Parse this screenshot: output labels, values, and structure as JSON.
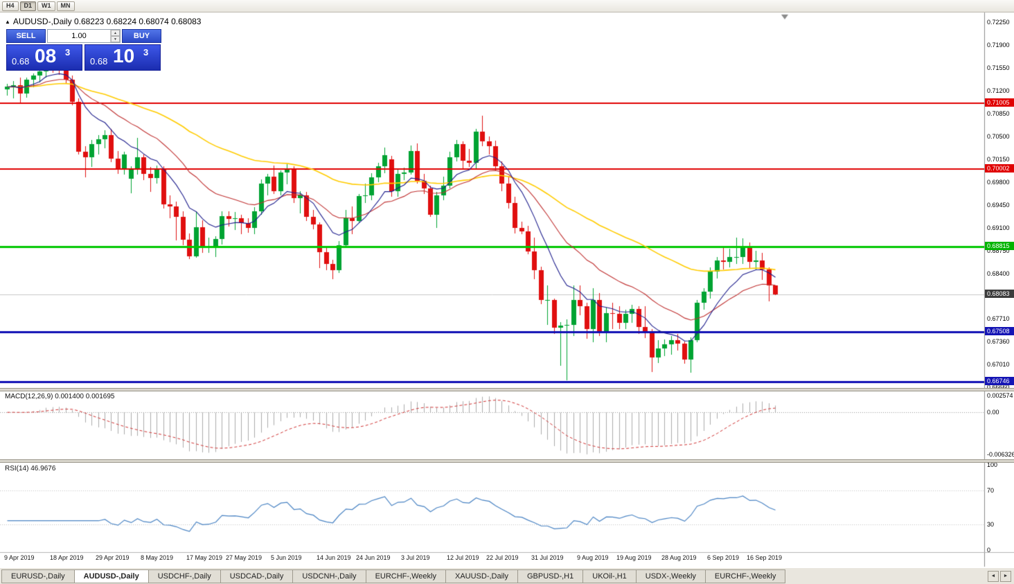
{
  "toolbar": {
    "timeframes": [
      {
        "label": "H4",
        "active": false
      },
      {
        "label": "D1",
        "active": true
      },
      {
        "label": "W1",
        "active": false
      },
      {
        "label": "MN",
        "active": false
      }
    ]
  },
  "icons": {
    "collapse": "▲",
    "spin_up": "▲",
    "spin_down": "▼",
    "left": "◄",
    "right": "►"
  },
  "chart": {
    "title": "AUDUSD-,Daily",
    "ohlc_text": "0.68223 0.68224 0.68074 0.68083"
  },
  "trade_panel": {
    "sell_label": "SELL",
    "buy_label": "BUY",
    "volume": "1.00",
    "bid": {
      "small": "0.68",
      "big": "08",
      "sup": "3"
    },
    "ask": {
      "small": "0.68",
      "big": "10",
      "sup": "3"
    }
  },
  "tabs": [
    {
      "label": "EURUSD-,Daily",
      "active": false
    },
    {
      "label": "AUDUSD-,Daily",
      "active": true
    },
    {
      "label": "USDCHF-,Daily",
      "active": false
    },
    {
      "label": "USDCAD-,Daily",
      "active": false
    },
    {
      "label": "USDCNH-,Daily",
      "active": false
    },
    {
      "label": "EURCHF-,Weekly",
      "active": false
    },
    {
      "label": "XAUUSD-,Daily",
      "active": false
    },
    {
      "label": "GBPUSD-,H1",
      "active": false
    },
    {
      "label": "UKOil-,H1",
      "active": false
    },
    {
      "label": "USDX-,Weekly",
      "active": false
    },
    {
      "label": "EURCHF-,Weekly",
      "active": false
    }
  ],
  "chart_data": {
    "type": "candlestick",
    "symbol": "AUDUSD-,Daily",
    "current_price": 0.68083,
    "colors": {
      "up": "#00A332",
      "down": "#E00F0F",
      "bid_line": "#C9C9C9"
    },
    "price_axis": {
      "max": 0.724,
      "min": 0.6665,
      "labels": [
        "0.72250",
        "0.71900",
        "0.71550",
        "0.71200",
        "0.70850",
        "0.70500",
        "0.70150",
        "0.69800",
        "0.69450",
        "0.69100",
        "0.68750",
        "0.68400",
        "0.67710",
        "0.67360",
        "0.67010",
        "0.66660"
      ],
      "badges": [
        {
          "value": 0.71005,
          "text": "0.71005",
          "color": "#E00000"
        },
        {
          "value": 0.70002,
          "text": "0.70002",
          "color": "#E00000"
        },
        {
          "value": 0.68815,
          "text": "0.68815",
          "color": "#00B400"
        },
        {
          "value": 0.68083,
          "text": "0.68083",
          "color": "#3C3C3C"
        },
        {
          "value": 0.67508,
          "text": "0.67508",
          "color": "#1414B4"
        },
        {
          "value": 0.66746,
          "text": "0.66746",
          "color": "#1414B4"
        }
      ]
    },
    "hlines": [
      {
        "value": 0.71005,
        "color": "#E00000",
        "width": 2
      },
      {
        "value": 0.70002,
        "color": "#E00000",
        "width": 2
      },
      {
        "value": 0.68815,
        "color": "#00C800",
        "width": 3
      },
      {
        "value": 0.67508,
        "color": "#0F0FB4",
        "width": 3
      },
      {
        "value": 0.66746,
        "color": "#0F0FB4",
        "width": 3
      }
    ],
    "ma": [
      {
        "period": 55,
        "color": "#FFCC00",
        "width": 1.6
      },
      {
        "period": 21,
        "color": "#C03030",
        "width": 1.1
      },
      {
        "period": 9,
        "color": "#1C1C8C",
        "width": 1.1
      }
    ],
    "macd": {
      "label": "MACD(12,26,9)",
      "values_text": "0.001400 0.001695",
      "fast": 12,
      "slow": 26,
      "signal": 9,
      "axis": {
        "max": "0.002574",
        "zero": "0.00",
        "min": "-0.006326"
      }
    },
    "rsi": {
      "label": "RSI(14)",
      "value_text": "46.9676",
      "period": 14,
      "axis": [
        100,
        70,
        30,
        0
      ],
      "levels": [
        70,
        30
      ]
    },
    "x_labels": [
      {
        "i": 0,
        "t": "9 Apr 2019"
      },
      {
        "i": 7,
        "t": "18 Apr 2019"
      },
      {
        "i": 14,
        "t": "29 Apr 2019"
      },
      {
        "i": 21,
        "t": "8 May 2019"
      },
      {
        "i": 28,
        "t": "17 May 2019"
      },
      {
        "i": 34,
        "t": "27 May 2019"
      },
      {
        "i": 41,
        "t": "5 Jun 2019"
      },
      {
        "i": 48,
        "t": "14 Jun 2019"
      },
      {
        "i": 54,
        "t": "24 Jun 2019"
      },
      {
        "i": 61,
        "t": "3 Jul 2019"
      },
      {
        "i": 68,
        "t": "12 Jul 2019"
      },
      {
        "i": 74,
        "t": "22 Jul 2019"
      },
      {
        "i": 81,
        "t": "31 Jul 2019"
      },
      {
        "i": 88,
        "t": "9 Aug 2019"
      },
      {
        "i": 94,
        "t": "19 Aug 2019"
      },
      {
        "i": 101,
        "t": "28 Aug 2019"
      },
      {
        "i": 108,
        "t": "6 Sep 2019"
      },
      {
        "i": 114,
        "t": "16 Sep 2019"
      }
    ],
    "ohlc": [
      [
        0.7122,
        0.7131,
        0.7113,
        0.7126
      ],
      [
        0.7126,
        0.7135,
        0.7108,
        0.7129
      ],
      [
        0.7129,
        0.714,
        0.7102,
        0.7116
      ],
      [
        0.7116,
        0.714,
        0.711,
        0.7137
      ],
      [
        0.7137,
        0.7147,
        0.7125,
        0.7143
      ],
      [
        0.7143,
        0.7155,
        0.7133,
        0.715
      ],
      [
        0.715,
        0.7176,
        0.714,
        0.7173
      ],
      [
        0.7173,
        0.7178,
        0.7148,
        0.7155
      ],
      [
        0.7155,
        0.7162,
        0.7145,
        0.7153
      ],
      [
        0.7153,
        0.7158,
        0.7132,
        0.7137
      ],
      [
        0.7137,
        0.7143,
        0.7098,
        0.7103
      ],
      [
        0.7103,
        0.7108,
        0.7022,
        0.7027
      ],
      [
        0.7027,
        0.7035,
        0.6988,
        0.7018
      ],
      [
        0.7018,
        0.7045,
        0.7003,
        0.7038
      ],
      [
        0.7038,
        0.7052,
        0.7023,
        0.7046
      ],
      [
        0.7046,
        0.706,
        0.7032,
        0.7052
      ],
      [
        0.7052,
        0.7062,
        0.7011,
        0.7016
      ],
      [
        0.7016,
        0.7028,
        0.6993,
        0.7
      ],
      [
        0.7,
        0.7027,
        0.6992,
        0.7022
      ],
      [
        0.6985,
        0.7005,
        0.6963,
        0.7
      ],
      [
        0.7,
        0.7048,
        0.6992,
        0.7018
      ],
      [
        0.7018,
        0.7023,
        0.6983,
        0.6993
      ],
      [
        0.6993,
        0.7003,
        0.6965,
        0.6986
      ],
      [
        0.6986,
        0.7006,
        0.6978,
        0.7
      ],
      [
        0.7,
        0.7005,
        0.694,
        0.6946
      ],
      [
        0.6946,
        0.696,
        0.6925,
        0.6943
      ],
      [
        0.6943,
        0.695,
        0.6891,
        0.6927
      ],
      [
        0.6927,
        0.6935,
        0.6884,
        0.6892
      ],
      [
        0.6892,
        0.6902,
        0.6862,
        0.6867
      ],
      [
        0.6867,
        0.6935,
        0.6864,
        0.6911
      ],
      [
        0.6911,
        0.6922,
        0.6872,
        0.6881
      ],
      [
        0.6881,
        0.6895,
        0.6872,
        0.6883
      ],
      [
        0.6883,
        0.6897,
        0.6865,
        0.6893
      ],
      [
        0.6893,
        0.6936,
        0.6885,
        0.6928
      ],
      [
        0.6928,
        0.6935,
        0.6912,
        0.6924
      ],
      [
        0.6924,
        0.6934,
        0.6907,
        0.6925
      ],
      [
        0.6925,
        0.693,
        0.6901,
        0.6918
      ],
      [
        0.6918,
        0.6925,
        0.6903,
        0.691
      ],
      [
        0.691,
        0.6942,
        0.6901,
        0.6936
      ],
      [
        0.6936,
        0.6984,
        0.693,
        0.6978
      ],
      [
        0.6978,
        0.6993,
        0.696,
        0.6989
      ],
      [
        0.6989,
        0.7006,
        0.6962,
        0.6966
      ],
      [
        0.6966,
        0.6998,
        0.696,
        0.6995
      ],
      [
        0.6995,
        0.7008,
        0.6977,
        0.7
      ],
      [
        0.7,
        0.7004,
        0.6948,
        0.6956
      ],
      [
        0.6956,
        0.6966,
        0.6932,
        0.696
      ],
      [
        0.696,
        0.6965,
        0.6921,
        0.6927
      ],
      [
        0.6927,
        0.6938,
        0.6908,
        0.6915
      ],
      [
        0.6915,
        0.6919,
        0.6849,
        0.6873
      ],
      [
        0.6873,
        0.688,
        0.6845,
        0.6855
      ],
      [
        0.6855,
        0.6861,
        0.6832,
        0.6845
      ],
      [
        0.6845,
        0.689,
        0.6841,
        0.6884
      ],
      [
        0.6884,
        0.6938,
        0.6879,
        0.6925
      ],
      [
        0.6925,
        0.6943,
        0.6901,
        0.6921
      ],
      [
        0.6921,
        0.6962,
        0.6917,
        0.6959
      ],
      [
        0.6959,
        0.6978,
        0.6948,
        0.696
      ],
      [
        0.696,
        0.6994,
        0.6953,
        0.6987
      ],
      [
        0.6987,
        0.701,
        0.698,
        0.7005
      ],
      [
        0.7005,
        0.7033,
        0.6994,
        0.7021
      ],
      [
        0.7015,
        0.702,
        0.6958,
        0.6966
      ],
      [
        0.6966,
        0.7,
        0.6958,
        0.6993
      ],
      [
        0.6993,
        0.7002,
        0.6983,
        0.6995
      ],
      [
        0.6995,
        0.7036,
        0.6992,
        0.7028
      ],
      [
        0.7028,
        0.704,
        0.6978,
        0.6982
      ],
      [
        0.6982,
        0.6993,
        0.6962,
        0.6971
      ],
      [
        0.6971,
        0.6975,
        0.6927,
        0.693
      ],
      [
        0.693,
        0.6965,
        0.691,
        0.696
      ],
      [
        0.696,
        0.6989,
        0.6952,
        0.6975
      ],
      [
        0.6975,
        0.7027,
        0.6971,
        0.7018
      ],
      [
        0.7018,
        0.7045,
        0.7012,
        0.7038
      ],
      [
        0.7038,
        0.7043,
        0.7,
        0.7013
      ],
      [
        0.7013,
        0.7031,
        0.7003,
        0.701
      ],
      [
        0.701,
        0.7062,
        0.7,
        0.7058
      ],
      [
        0.7058,
        0.7082,
        0.7035,
        0.7043
      ],
      [
        0.7043,
        0.705,
        0.7022,
        0.7035
      ],
      [
        0.7035,
        0.7044,
        0.6998,
        0.7005
      ],
      [
        0.7005,
        0.7012,
        0.6966,
        0.6978
      ],
      [
        0.6978,
        0.699,
        0.694,
        0.6948
      ],
      [
        0.6948,
        0.6958,
        0.6902,
        0.691
      ],
      [
        0.691,
        0.692,
        0.69,
        0.6905
      ],
      [
        0.6905,
        0.6913,
        0.687,
        0.6874
      ],
      [
        0.6874,
        0.6895,
        0.6832,
        0.6845
      ],
      [
        0.6845,
        0.6851,
        0.6793,
        0.68
      ],
      [
        0.68,
        0.6822,
        0.6762,
        0.68
      ],
      [
        0.68,
        0.6802,
        0.6748,
        0.6757
      ],
      [
        0.6757,
        0.6766,
        0.6699,
        0.676
      ],
      [
        0.676,
        0.677,
        0.6677,
        0.6762
      ],
      [
        0.6762,
        0.6822,
        0.6745,
        0.68
      ],
      [
        0.68,
        0.6822,
        0.6776,
        0.679
      ],
      [
        0.679,
        0.6796,
        0.674,
        0.6755
      ],
      [
        0.6755,
        0.6818,
        0.6735,
        0.68
      ],
      [
        0.68,
        0.681,
        0.6745,
        0.675
      ],
      [
        0.675,
        0.6788,
        0.6735,
        0.678
      ],
      [
        0.678,
        0.6795,
        0.6755,
        0.6778
      ],
      [
        0.6778,
        0.679,
        0.6755,
        0.6765
      ],
      [
        0.6765,
        0.6785,
        0.6755,
        0.6778
      ],
      [
        0.6778,
        0.6792,
        0.6765,
        0.6786
      ],
      [
        0.6786,
        0.679,
        0.6748,
        0.6758
      ],
      [
        0.6758,
        0.679,
        0.6741,
        0.6751
      ],
      [
        0.6751,
        0.6755,
        0.6689,
        0.6712
      ],
      [
        0.6712,
        0.6738,
        0.6703,
        0.6726
      ],
      [
        0.6726,
        0.6739,
        0.6714,
        0.6732
      ],
      [
        0.6732,
        0.6745,
        0.6716,
        0.6738
      ],
      [
        0.6738,
        0.6748,
        0.6722,
        0.6733
      ],
      [
        0.6733,
        0.6736,
        0.6702,
        0.6708
      ],
      [
        0.6708,
        0.6742,
        0.6688,
        0.6738
      ],
      [
        0.6738,
        0.68,
        0.6735,
        0.6795
      ],
      [
        0.6795,
        0.6818,
        0.6785,
        0.6812
      ],
      [
        0.6812,
        0.685,
        0.6802,
        0.6843
      ],
      [
        0.6843,
        0.6866,
        0.6833,
        0.686
      ],
      [
        0.686,
        0.688,
        0.6846,
        0.6858
      ],
      [
        0.6858,
        0.6878,
        0.685,
        0.6866
      ],
      [
        0.6866,
        0.6895,
        0.6855,
        0.6866
      ],
      [
        0.6866,
        0.6894,
        0.6855,
        0.688
      ],
      [
        0.688,
        0.6888,
        0.6849,
        0.6858
      ],
      [
        0.6858,
        0.6875,
        0.6845,
        0.686
      ],
      [
        0.686,
        0.6872,
        0.683,
        0.6846
      ],
      [
        0.6846,
        0.685,
        0.6798,
        0.6822
      ],
      [
        0.6822,
        0.6822,
        0.6807,
        0.6808
      ]
    ]
  }
}
